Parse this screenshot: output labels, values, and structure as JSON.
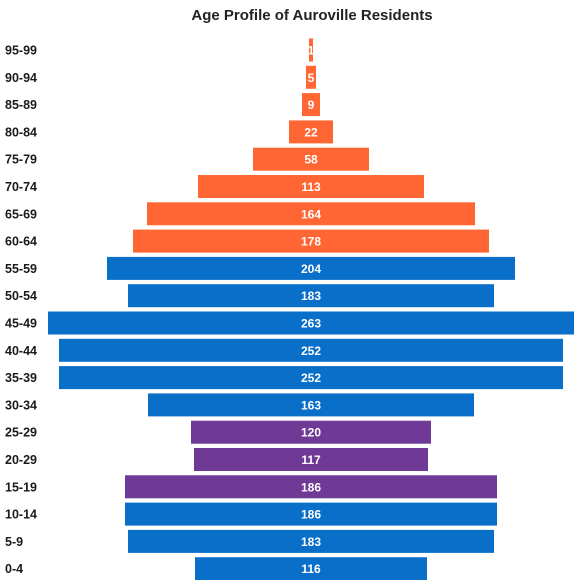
{
  "chart_data": {
    "type": "bar",
    "orientation": "horizontal",
    "title": "Age Profile of Auroville Residents",
    "categories": [
      "95-99",
      "90-94",
      "85-89",
      "80-84",
      "75-79",
      "70-74",
      "65-69",
      "60-64",
      "55-59",
      "50-54",
      "45-49",
      "40-44",
      "35-39",
      "30-34",
      "25-29",
      "20-29",
      "15-19",
      "10-14",
      "5-9",
      "0-4"
    ],
    "values": [
      1,
      5,
      9,
      22,
      58,
      113,
      164,
      178,
      204,
      183,
      263,
      252,
      252,
      163,
      120,
      117,
      186,
      186,
      183,
      116
    ],
    "bar_colors": [
      "#ff6633",
      "#ff6633",
      "#ff6633",
      "#ff6633",
      "#ff6633",
      "#ff6633",
      "#ff6633",
      "#ff6633",
      "#0a6fc9",
      "#0a6fc9",
      "#0a6fc9",
      "#0a6fc9",
      "#0a6fc9",
      "#0a6fc9",
      "#6e3a96",
      "#6e3a96",
      "#6e3a96",
      "#0a6fc9",
      "#0a6fc9",
      "#0a6fc9"
    ],
    "data_labels": true,
    "grid": false,
    "legend": "none"
  }
}
